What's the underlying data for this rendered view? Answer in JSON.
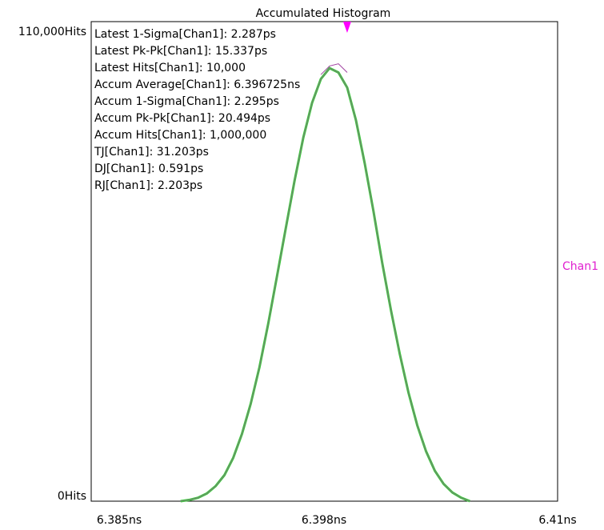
{
  "chart_data": {
    "type": "area",
    "title": "Accumulated Histogram",
    "y_top_label": "110,000Hits",
    "y_bottom_label": "0Hits",
    "ylim": [
      0,
      110000
    ],
    "x_unit": "ns",
    "x_ticks": [
      "6.385ns",
      "6.398ns",
      "6.41ns"
    ],
    "xlim": [
      6.385,
      6.41
    ],
    "series_label": "Chan1",
    "marker_x": 6.398,
    "colors": {
      "accum": "#3cc83c",
      "latest": "#a040a0",
      "marker": "#ff00ff",
      "frame": "#000000"
    },
    "stats": [
      "Latest 1-Sigma[Chan1]: 2.287ps",
      "Latest Pk-Pk[Chan1]: 15.337ps",
      "Latest Hits[Chan1]: 10,000",
      "Accum Average[Chan1]: 6.396725ns",
      "Accum 1-Sigma[Chan1]: 2.295ps",
      "Accum Pk-Pk[Chan1]: 20.494ps",
      "Accum Hits[Chan1]: 1,000,000",
      "TJ[Chan1]: 31.203ps",
      "DJ[Chan1]: 0.591ps",
      "RJ[Chan1]: 2.203ps"
    ],
    "series": [
      {
        "kind": "accum",
        "x": [
          6.3885,
          6.389,
          6.3895,
          6.39,
          6.3905,
          6.391,
          6.3915,
          6.392,
          6.3925,
          6.393,
          6.3935,
          6.394,
          6.3945,
          6.395,
          6.3955,
          6.396,
          6.3965,
          6.397,
          6.3975,
          6.398,
          6.3985,
          6.399,
          6.3995,
          6.4,
          6.4005,
          6.401,
          6.4015,
          6.402,
          6.4025,
          6.403,
          6.4035,
          6.404,
          6.4045,
          6.405
        ],
        "y": [
          0,
          300,
          800,
          1800,
          3500,
          6000,
          10000,
          15500,
          22500,
          31000,
          41000,
          52000,
          63000,
          74000,
          84000,
          92000,
          97500,
          100000,
          99000,
          95500,
          88000,
          78000,
          67000,
          55000,
          44000,
          34000,
          25000,
          17500,
          11500,
          7000,
          4000,
          2000,
          800,
          0
        ]
      },
      {
        "kind": "latest",
        "x": [
          6.3965,
          6.397,
          6.3975,
          6.398
        ],
        "y": [
          98500,
          100500,
          101000,
          99000
        ]
      }
    ]
  }
}
